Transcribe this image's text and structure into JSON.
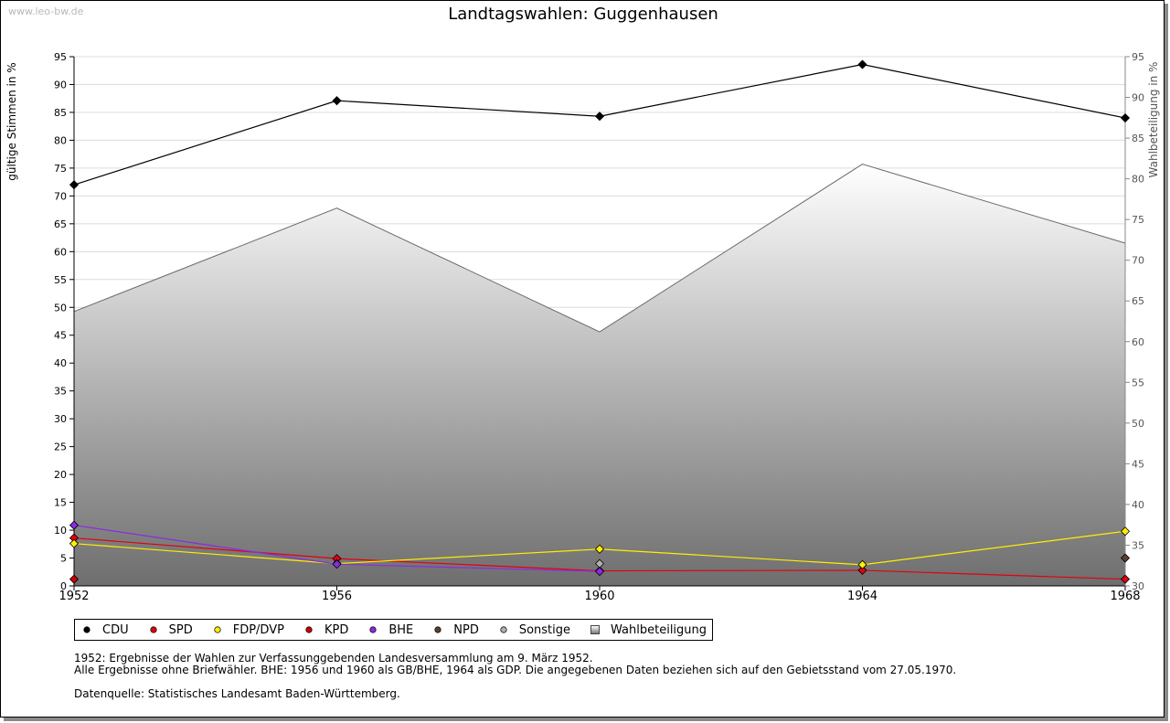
{
  "watermark": "www.leo-bw.de",
  "chart_data": {
    "type": "line",
    "title": "Landtagswahlen: Guggenhausen",
    "ylabel": "gültige Stimmen in %",
    "y2label": "Wahlbeteiligung in %",
    "x": [
      "1952",
      "1956",
      "1960",
      "1964",
      "1968"
    ],
    "ylim": [
      0,
      95
    ],
    "yticks": [
      0,
      5,
      10,
      15,
      20,
      25,
      30,
      35,
      40,
      45,
      50,
      55,
      60,
      65,
      70,
      75,
      80,
      85,
      90,
      95
    ],
    "y2lim": [
      30,
      95
    ],
    "y2ticks": [
      30,
      35,
      40,
      45,
      50,
      55,
      60,
      65,
      70,
      75,
      80,
      85,
      90,
      95
    ],
    "grid": true,
    "legend_position": "bottom",
    "series": [
      {
        "name": "CDU",
        "color": "#000000",
        "values": [
          72.0,
          87.1,
          84.3,
          93.6,
          84.0
        ]
      },
      {
        "name": "SPD",
        "color": "#e3000f",
        "values": [
          8.6,
          4.9,
          2.7,
          2.8,
          1.2
        ]
      },
      {
        "name": "FDP/DVP",
        "color": "#ffee00",
        "values": [
          7.6,
          4.0,
          6.6,
          3.8,
          9.8
        ]
      },
      {
        "name": "KPD",
        "color": "#cc0000",
        "values": [
          1.2,
          null,
          null,
          null,
          null
        ]
      },
      {
        "name": "BHE",
        "color": "#8a2be2",
        "values": [
          10.9,
          3.9,
          2.6,
          null,
          null
        ]
      },
      {
        "name": "NPD",
        "color": "#5a4030",
        "values": [
          null,
          null,
          null,
          null,
          5.0
        ]
      },
      {
        "name": "Sonstige",
        "color": "#b0b0b0",
        "values": [
          null,
          null,
          4.0,
          null,
          null
        ]
      },
      {
        "name": "Wahlbeteiligung",
        "axis": "right",
        "type": "area",
        "color": "#777777",
        "values": [
          63.7,
          76.4,
          61.2,
          81.8,
          72.1
        ]
      }
    ]
  },
  "notes": {
    "line1": "1952: Ergebnisse der Wahlen zur Verfassunggebenden Landesversammlung am 9. März 1952.",
    "line2": "Alle Ergebnisse ohne Briefwähler. BHE: 1956 und 1960 als GB/BHE, 1964 als GDP. Die angegebenen Daten beziehen sich auf den Gebietsstand vom 27.05.1970.",
    "source": "Datenquelle: Statistisches Landesamt Baden-Württemberg."
  }
}
